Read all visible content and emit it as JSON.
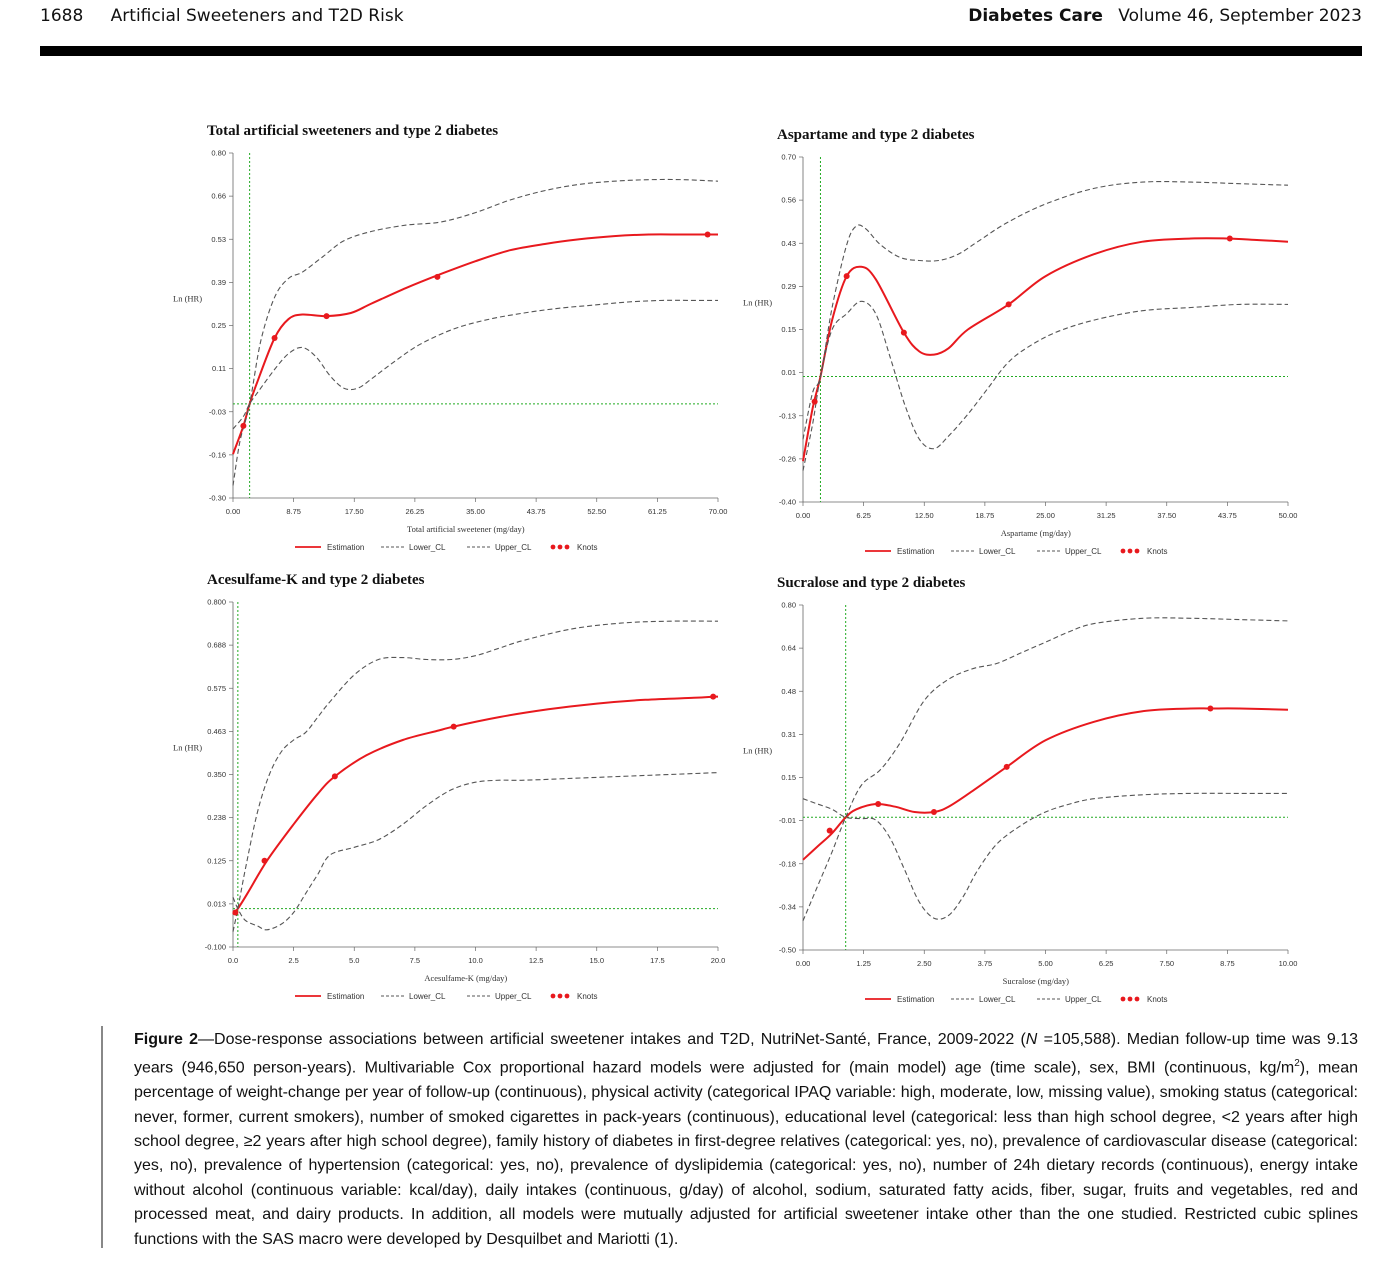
{
  "header": {
    "page_number": "1688",
    "running_title": "Artificial Sweeteners and T2D Risk",
    "journal": "Diabetes Care",
    "volume": "Volume 46, September 2023"
  },
  "chart_data": [
    {
      "type": "line",
      "title": "Total artificial sweeteners and type 2 diabetes",
      "xlabel": "Total artificial sweetener (mg/day)",
      "ylabel": "Ln (HR)",
      "xlim": [
        0,
        70
      ],
      "ylim": [
        -0.3,
        0.8
      ],
      "xticks": [
        "0.00",
        "8.75",
        "17.50",
        "26.25",
        "35.00",
        "43.75",
        "52.50",
        "61.25",
        "70.00"
      ],
      "yticks": [
        "-0.30",
        "-0.16",
        "-0.03",
        "0.11",
        "0.25",
        "0.39",
        "0.53",
        "0.66",
        "0.80"
      ],
      "ref_x": 2.4,
      "ref_y": 0,
      "legend": [
        "Estimation",
        "Lower_CL",
        "Upper_CL",
        "Knots"
      ],
      "series": [
        {
          "name": "Estimation",
          "x": [
            0,
            1.5,
            2.4,
            3.5,
            6,
            8,
            10,
            13.5,
            17,
            20,
            25,
            29.5,
            35,
            40,
            45,
            50,
            55,
            60,
            65,
            70
          ],
          "y": [
            -0.16,
            -0.07,
            0,
            0.07,
            0.21,
            0.27,
            0.285,
            0.28,
            0.29,
            0.32,
            0.37,
            0.41,
            0.455,
            0.49,
            0.51,
            0.525,
            0.535,
            0.54,
            0.54,
            0.54
          ]
        },
        {
          "name": "Lower_CL",
          "x": [
            0,
            1.5,
            2.4,
            4,
            6,
            8,
            10,
            12,
            14,
            16,
            18,
            20,
            23,
            27,
            32,
            37,
            42,
            47,
            52,
            57,
            62,
            66,
            70
          ],
          "y": [
            -0.08,
            -0.04,
            0,
            0.05,
            0.11,
            0.16,
            0.18,
            0.15,
            0.09,
            0.05,
            0.05,
            0.08,
            0.13,
            0.19,
            0.24,
            0.27,
            0.29,
            0.305,
            0.315,
            0.325,
            0.33,
            0.33,
            0.33
          ]
        },
        {
          "name": "Upper_CL",
          "x": [
            0,
            1,
            2.4,
            4,
            6,
            8,
            10,
            13,
            16,
            20,
            25,
            30,
            35,
            40,
            45,
            50,
            55,
            60,
            65,
            70
          ],
          "y": [
            -0.26,
            -0.12,
            0,
            0.2,
            0.34,
            0.4,
            0.42,
            0.47,
            0.52,
            0.55,
            0.57,
            0.58,
            0.61,
            0.65,
            0.68,
            0.7,
            0.71,
            0.715,
            0.715,
            0.71
          ]
        }
      ],
      "knots": {
        "x": [
          1.5,
          6,
          13.5,
          29.5,
          68.5
        ],
        "y": [
          -0.07,
          0.21,
          0.28,
          0.405,
          0.54
        ]
      }
    },
    {
      "type": "line",
      "title": "Aspartame and type 2 diabetes",
      "xlabel": "Aspartame (mg/day)",
      "ylabel": "Ln (HR)",
      "xlim": [
        0,
        50
      ],
      "ylim": [
        -0.4,
        0.7
      ],
      "xticks": [
        "0.00",
        "6.25",
        "12.50",
        "18.75",
        "25.00",
        "31.25",
        "37.50",
        "43.75",
        "50.00"
      ],
      "yticks": [
        "-0.40",
        "-0.26",
        "-0.13",
        "0.01",
        "0.15",
        "0.29",
        "0.43",
        "0.56",
        "0.70"
      ],
      "ref_x": 1.8,
      "ref_y": 0,
      "legend": [
        "Estimation",
        "Lower_CL",
        "Upper_CL",
        "Knots"
      ],
      "series": [
        {
          "name": "Estimation",
          "x": [
            0,
            1,
            1.8,
            3,
            4.5,
            6,
            7.5,
            10.4,
            12,
            13.5,
            15,
            17,
            21.2,
            25,
            30,
            35,
            40,
            43.7,
            47,
            50
          ],
          "y": [
            -0.27,
            -0.1,
            0,
            0.18,
            0.32,
            0.35,
            0.31,
            0.14,
            0.08,
            0.07,
            0.09,
            0.15,
            0.23,
            0.32,
            0.39,
            0.43,
            0.44,
            0.44,
            0.435,
            0.43
          ]
        },
        {
          "name": "Lower_CL",
          "x": [
            0,
            1,
            1.8,
            3,
            4.5,
            6,
            7.5,
            9,
            10.5,
            12,
            13.5,
            15,
            17,
            19,
            21,
            23,
            26,
            30,
            35,
            40,
            45,
            50
          ],
          "y": [
            -0.3,
            -0.15,
            0,
            0.15,
            0.2,
            0.24,
            0.2,
            0.06,
            -0.09,
            -0.2,
            -0.23,
            -0.19,
            -0.12,
            -0.04,
            0.04,
            0.09,
            0.14,
            0.18,
            0.21,
            0.22,
            0.23,
            0.23
          ]
        },
        {
          "name": "Upper_CL",
          "x": [
            0,
            1,
            1.8,
            3,
            4.5,
            5.5,
            6.5,
            8,
            10,
            12,
            14,
            16,
            18,
            21,
            25,
            30,
            35,
            40,
            45,
            50
          ],
          "y": [
            -0.2,
            -0.05,
            0,
            0.22,
            0.42,
            0.48,
            0.47,
            0.42,
            0.38,
            0.37,
            0.37,
            0.39,
            0.43,
            0.49,
            0.55,
            0.6,
            0.62,
            0.62,
            0.615,
            0.61
          ]
        }
      ],
      "knots": {
        "x": [
          1.2,
          4.5,
          10.4,
          21.2,
          44
        ],
        "y": [
          -0.08,
          0.32,
          0.14,
          0.23,
          0.44
        ]
      }
    },
    {
      "type": "line",
      "title": "Acesulfame-K and type 2 diabetes",
      "xlabel": "Acesulfame-K (mg/day)",
      "ylabel": "Ln (HR)",
      "xlim": [
        0,
        20
      ],
      "ylim": [
        -0.1,
        0.8
      ],
      "xticks": [
        "0.0",
        "2.5",
        "5.0",
        "7.5",
        "10.0",
        "12.5",
        "15.0",
        "17.5",
        "20.0"
      ],
      "yticks": [
        "-0.100",
        "0.013",
        "0.125",
        "0.238",
        "0.350",
        "0.463",
        "0.575",
        "0.688",
        "0.800"
      ],
      "ref_x": 0.2,
      "ref_y": 0,
      "legend": [
        "Estimation",
        "Lower_CL",
        "Upper_CL",
        "Knots"
      ],
      "series": [
        {
          "name": "Estimation",
          "x": [
            0,
            0.2,
            0.6,
            1.4,
            2.5,
            3.5,
            4.2,
            5.5,
            7,
            8.5,
            9.1,
            11,
            13,
            15,
            17,
            19,
            19.8,
            20
          ],
          "y": [
            -0.015,
            0,
            0.04,
            0.125,
            0.22,
            0.3,
            0.345,
            0.4,
            0.44,
            0.465,
            0.475,
            0.5,
            0.52,
            0.535,
            0.545,
            0.55,
            0.553,
            0.553
          ]
        },
        {
          "name": "Lower_CL",
          "x": [
            0,
            0.2,
            0.5,
            1,
            1.4,
            2,
            2.5,
            3,
            3.5,
            4,
            5,
            6,
            7,
            8,
            9,
            10,
            11,
            12,
            14,
            16,
            18,
            20
          ],
          "y": [
            0.03,
            0,
            -0.03,
            -0.045,
            -0.055,
            -0.04,
            -0.01,
            0.04,
            0.09,
            0.14,
            0.16,
            0.18,
            0.22,
            0.27,
            0.31,
            0.33,
            0.335,
            0.335,
            0.34,
            0.345,
            0.35,
            0.355
          ]
        },
        {
          "name": "Upper_CL",
          "x": [
            0,
            0.2,
            0.5,
            1,
            1.5,
            2,
            2.5,
            3,
            3.5,
            4,
            5,
            6,
            7,
            8,
            9,
            10,
            11,
            12,
            14,
            16,
            18,
            20
          ],
          "y": [
            -0.06,
            0,
            0.1,
            0.25,
            0.35,
            0.41,
            0.44,
            0.46,
            0.5,
            0.54,
            0.61,
            0.65,
            0.655,
            0.65,
            0.65,
            0.66,
            0.68,
            0.7,
            0.73,
            0.745,
            0.75,
            0.75
          ]
        }
      ],
      "knots": {
        "x": [
          0.1,
          1.3,
          4.2,
          9.1,
          19.8
        ],
        "y": [
          -0.01,
          0.125,
          0.345,
          0.475,
          0.553
        ]
      }
    },
    {
      "type": "line",
      "title": "Sucralose and type 2 diabetes",
      "xlabel": "Sucralose (mg/day)",
      "ylabel": "Ln (HR)",
      "xlim": [
        0,
        10
      ],
      "ylim": [
        -0.5,
        0.8
      ],
      "xticks": [
        "0.00",
        "1.25",
        "2.50",
        "3.75",
        "5.00",
        "6.25",
        "7.50",
        "8.75",
        "10.00"
      ],
      "yticks": [
        "-0.50",
        "-0.34",
        "-0.18",
        "-0.01",
        "0.15",
        "0.31",
        "0.48",
        "0.64",
        "0.80"
      ],
      "ref_x": 0.88,
      "ref_y": 0,
      "legend": [
        "Estimation",
        "Lower_CL",
        "Upper_CL",
        "Knots"
      ],
      "series": [
        {
          "name": "Estimation",
          "x": [
            0,
            0.3,
            0.6,
            0.88,
            1.1,
            1.5,
            1.9,
            2.3,
            2.7,
            3,
            3.5,
            4.2,
            5,
            6,
            7,
            8,
            8.4,
            9,
            10
          ],
          "y": [
            -0.16,
            -0.11,
            -0.06,
            0,
            0.03,
            0.05,
            0.04,
            0.02,
            0.02,
            0.04,
            0.1,
            0.19,
            0.29,
            0.36,
            0.4,
            0.41,
            0.41,
            0.41,
            0.405
          ]
        },
        {
          "name": "Lower_CL",
          "x": [
            0,
            0.3,
            0.6,
            0.88,
            1.2,
            1.5,
            1.8,
            2.1,
            2.4,
            2.7,
            3,
            3.3,
            3.6,
            4,
            4.5,
            5,
            5.5,
            6,
            7,
            8,
            9,
            10
          ],
          "y": [
            0.07,
            0.05,
            0.03,
            0,
            -0.005,
            -0.01,
            -0.08,
            -0.2,
            -0.32,
            -0.38,
            -0.37,
            -0.3,
            -0.2,
            -0.1,
            -0.03,
            0.02,
            0.05,
            0.07,
            0.085,
            0.09,
            0.09,
            0.09
          ]
        },
        {
          "name": "Upper_CL",
          "x": [
            0,
            0.3,
            0.6,
            0.88,
            1.2,
            1.6,
            2,
            2.5,
            3,
            3.5,
            4,
            4.5,
            5,
            5.5,
            6,
            7,
            8,
            9,
            10
          ],
          "y": [
            -0.39,
            -0.26,
            -0.13,
            0,
            0.12,
            0.18,
            0.28,
            0.44,
            0.52,
            0.56,
            0.58,
            0.62,
            0.66,
            0.7,
            0.73,
            0.75,
            0.75,
            0.745,
            0.74
          ]
        }
      ],
      "knots": {
        "x": [
          0.55,
          1.55,
          2.7,
          4.2,
          8.4
        ],
        "y": [
          -0.05,
          0.05,
          0.02,
          0.19,
          0.41
        ]
      }
    }
  ],
  "caption": {
    "label": "Figure 2",
    "text": "—Dose-response associations between artificial sweetener intakes and T2D, NutriNet-Santé, France, 2009-2022 (",
    "n_symbol": "N",
    "text2": " =105,588). Median follow-up time was 9.13 years (946,650 person-years). Multivariable Cox proportional hazard models were adjusted for (main model) age (time scale), sex, BMI (continuous, kg/m",
    "superscript": "2",
    "text3": "), mean percentage of weight-change per year of follow-up (continuous), physical activity (categorical IPAQ variable: high, moderate, low, missing value), smoking status (categorical: never, former, current smokers), number of smoked cigarettes in pack-years (continuous), educational level (categorical: less than high school degree, <2 years after high school degree, ≥2 years after high school degree), family history of diabetes in first-degree relatives (categorical: yes, no), prevalence of cardiovascular disease (categorical: yes, no), prevalence of hypertension (categorical: yes, no), prevalence of dyslipidemia (categorical: yes, no), number of 24h dietary records (continuous), energy intake without alcohol (continuous variable: kcal/day), daily intakes (continuous, g/day) of alcohol, sodium, saturated fatty acids, fiber, sugar, fruits and vegetables, red and processed meat, and dairy products. In addition, all models were mutually adjusted for artificial sweetener intake other than the one studied. Restricted cubic splines functions with the SAS macro were developed by Desquilbet and Mariotti (1)."
  },
  "colors": {
    "estimation": "#e8191e",
    "ci": "#555555",
    "reference": "#22aa22",
    "rule": "#000000"
  }
}
